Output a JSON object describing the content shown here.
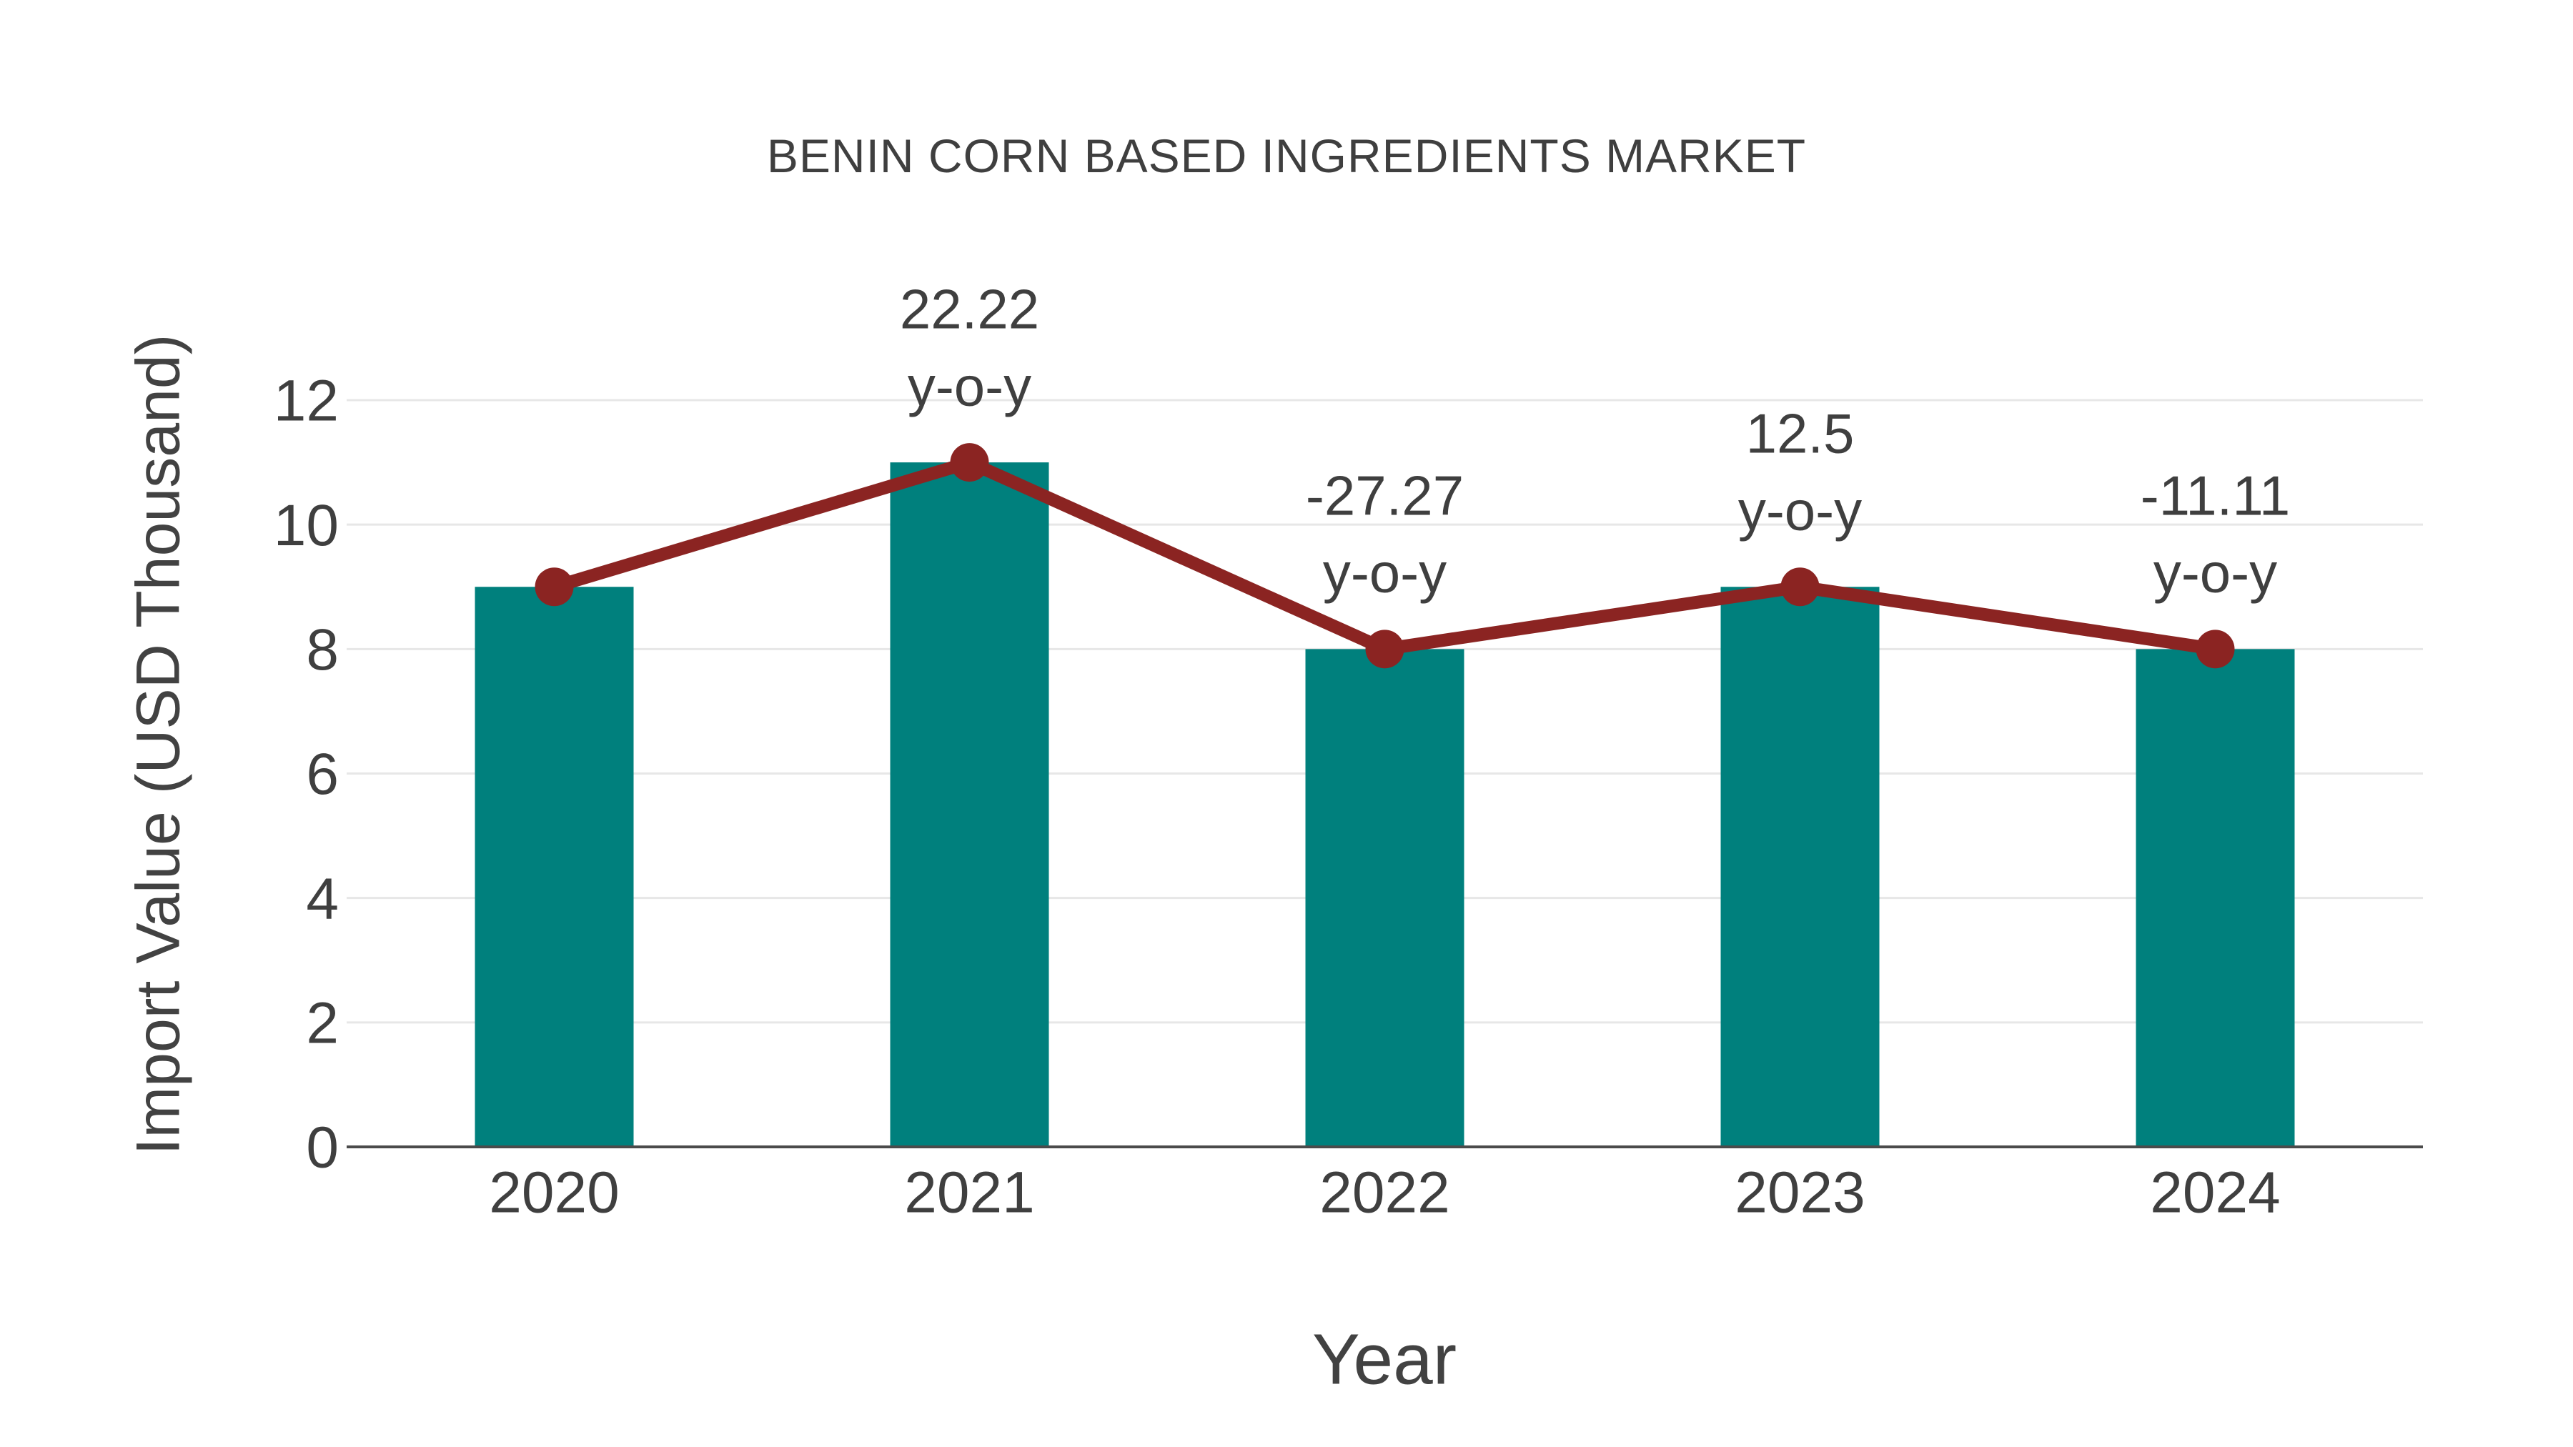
{
  "page": {
    "background": "#ffffff"
  },
  "chart_data": {
    "type": "bar",
    "title": "BENIN CORN BASED INGREDIENTS MARKET",
    "xlabel": "Year",
    "ylabel": "Import Value (USD Thousand)",
    "categories": [
      "2020",
      "2021",
      "2022",
      "2023",
      "2024"
    ],
    "series": [
      {
        "name": "Import Value",
        "kind": "bar",
        "values": [
          9,
          11,
          8,
          9,
          8
        ],
        "color": "#00807d"
      },
      {
        "name": "y-o-y trend line",
        "kind": "line",
        "values": [
          9,
          11,
          8,
          9,
          8
        ],
        "color": "#8b2422"
      }
    ],
    "annotations": [
      {
        "category": "2021",
        "value_label": "22.22",
        "suffix_label": "y-o-y"
      },
      {
        "category": "2022",
        "value_label": "-27.27",
        "suffix_label": "y-o-y"
      },
      {
        "category": "2023",
        "value_label": "12.5",
        "suffix_label": "y-o-y"
      },
      {
        "category": "2024",
        "value_label": "-11.11",
        "suffix_label": "y-o-y"
      }
    ],
    "ylim": [
      0,
      12
    ],
    "yticks": [
      0,
      2,
      4,
      6,
      8,
      10,
      12
    ],
    "grid": true,
    "legend_position": "none",
    "colors": {
      "bar": "#00807d",
      "line": "#8b2422",
      "marker": "#8b2422",
      "text": "#3f3f3f",
      "gridline": "#e7e7e7",
      "axis_line": "#4b4b4b"
    }
  }
}
